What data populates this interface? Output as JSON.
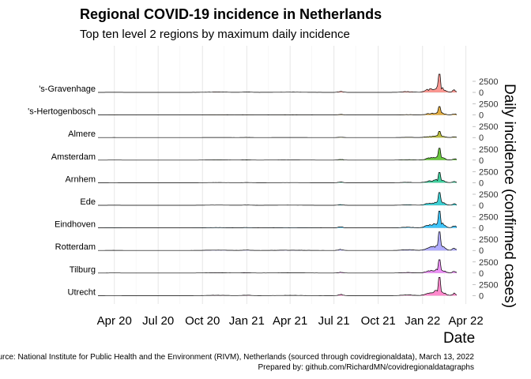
{
  "title": "Regional COVID-19 incidence in Netherlands",
  "subtitle": "Top ten level 2 regions by maximum daily incidence",
  "caption_line1": "Source: National Institute for Public Health and the Environment (RIVM), Netherlands (sourced through covidregionaldata), March 13, 2022",
  "caption_line2": "Prepared by: github.com/RichardMN/covidregionaldatagraphs",
  "chart_data": {
    "type": "area",
    "xlabel": "Date",
    "ylabel": "Daily incidence (confirmed cases)",
    "x_range": [
      "2020-02-27",
      "2022-03-13"
    ],
    "x_ticks": [
      "Apr 20",
      "Jul 20",
      "Oct 20",
      "Jan 21",
      "Apr 21",
      "Jul 21",
      "Oct 21",
      "Jan 22",
      "Apr 22"
    ],
    "x_tick_dates": [
      "2020-04-01",
      "2020-07-01",
      "2020-10-01",
      "2021-01-01",
      "2021-04-01",
      "2021-07-01",
      "2021-10-01",
      "2022-01-01",
      "2022-04-01"
    ],
    "y_ticks": [
      0,
      2500
    ],
    "grid": true,
    "series_template": {
      "baseline": 5,
      "bumps": [
        {
          "date": "2020-04-01",
          "width_days": 14,
          "height": 20
        },
        {
          "date": "2020-11-01",
          "width_days": 30,
          "height": 70
        },
        {
          "date": "2021-01-01",
          "width_days": 12,
          "height": 80
        },
        {
          "date": "2021-04-01",
          "width_days": 40,
          "height": 50
        },
        {
          "date": "2021-07-15",
          "width_days": 7,
          "height": 230
        },
        {
          "date": "2021-12-01",
          "width_days": 16,
          "height": 160
        },
        {
          "date": "2022-01-15",
          "width_days": 12,
          "height": 600
        },
        {
          "date": "2022-02-05",
          "width_days": 12,
          "height": 1300
        },
        {
          "date": "2022-03-08",
          "width_days": 5,
          "height": 500
        }
      ]
    },
    "series": [
      {
        "name": "'s-Gravenhage",
        "color": "#F8766D",
        "peak": 4100
      },
      {
        "name": "'s-Hertogenbosch",
        "color": "#D89000",
        "peak": 1900
      },
      {
        "name": "Almere",
        "color": "#A3A500",
        "peak": 1400
      },
      {
        "name": "Amsterdam",
        "color": "#39B600",
        "peak": 2700
      },
      {
        "name": "Arnhem",
        "color": "#00BF7D",
        "peak": 2300
      },
      {
        "name": "Ede",
        "color": "#00BFC4",
        "peak": 2900
      },
      {
        "name": "Eindhoven",
        "color": "#00B0F6",
        "peak": 3800
      },
      {
        "name": "Rotterdam",
        "color": "#9590FF",
        "peak": 4200
      },
      {
        "name": "Tilburg",
        "color": "#E76BF3",
        "peak": 3000
      },
      {
        "name": "Utrecht",
        "color": "#FF62BC",
        "peak": 4100
      }
    ]
  }
}
